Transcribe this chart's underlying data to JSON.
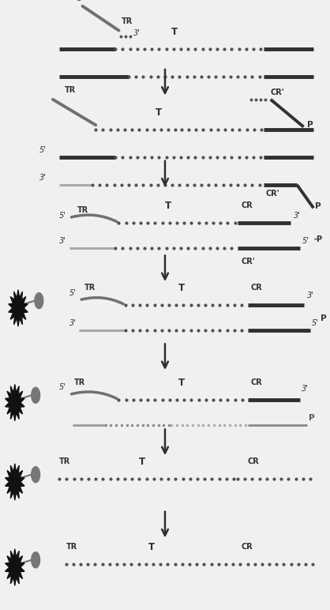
{
  "bg_color": "#f0f0f0",
  "dark": "#303030",
  "mid": "#707070",
  "light": "#aaaaaa",
  "dot_dark": "#505050",
  "dot_light": "#909090",
  "figsize": [
    4.18,
    7.72
  ],
  "dpi": 100,
  "xlim": [
    0,
    10
  ],
  "ylim": [
    0,
    10
  ],
  "panels": {
    "p1_y": 9.45,
    "p2_y": 7.95,
    "p3_y": 6.35,
    "p4_y": 4.95,
    "p5_y": 3.35,
    "p6_y": 2.05,
    "p7_y": 0.65
  },
  "arrows_y": [
    8.65,
    7.15,
    5.6,
    4.15,
    2.75,
    1.4
  ]
}
